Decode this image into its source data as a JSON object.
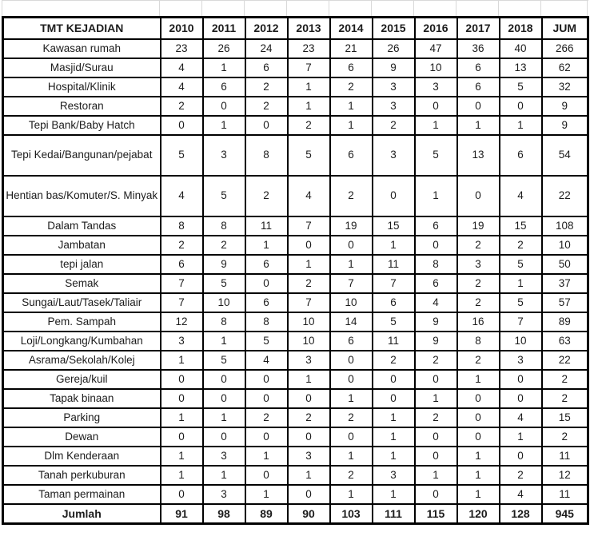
{
  "chart_data": {
    "type": "table",
    "title": "TMT KEJADIAN",
    "columns": [
      "TMT KEJADIAN",
      "2010",
      "2011",
      "2012",
      "2013",
      "2014",
      "2015",
      "2016",
      "2017",
      "2018",
      "JUM"
    ],
    "rows": [
      {
        "label": "Kawasan rumah",
        "values": [
          23,
          26,
          24,
          23,
          21,
          26,
          47,
          36,
          40
        ],
        "total": 266
      },
      {
        "label": "Masjid/Surau",
        "values": [
          4,
          1,
          6,
          7,
          6,
          9,
          10,
          6,
          13
        ],
        "total": 62
      },
      {
        "label": "Hospital/Klinik",
        "values": [
          4,
          6,
          2,
          1,
          2,
          3,
          3,
          6,
          5
        ],
        "total": 32
      },
      {
        "label": "Restoran",
        "values": [
          2,
          0,
          2,
          1,
          1,
          3,
          0,
          0,
          0
        ],
        "total": 9
      },
      {
        "label": "Tepi Bank/Baby Hatch",
        "values": [
          0,
          1,
          0,
          2,
          1,
          2,
          1,
          1,
          1
        ],
        "total": 9
      },
      {
        "label": "Tepi Kedai/Bangunan/pejabat",
        "values": [
          5,
          3,
          8,
          5,
          6,
          3,
          5,
          13,
          6
        ],
        "total": 54
      },
      {
        "label": "Hentian bas/Komuter/S. Minyak",
        "values": [
          4,
          5,
          2,
          4,
          2,
          0,
          1,
          0,
          4
        ],
        "total": 22
      },
      {
        "label": "Dalam Tandas",
        "values": [
          8,
          8,
          11,
          7,
          19,
          15,
          6,
          19,
          15
        ],
        "total": 108
      },
      {
        "label": "Jambatan",
        "values": [
          2,
          2,
          1,
          0,
          0,
          1,
          0,
          2,
          2
        ],
        "total": 10
      },
      {
        "label": "tepi jalan",
        "values": [
          6,
          9,
          6,
          1,
          1,
          11,
          8,
          3,
          5
        ],
        "total": 50
      },
      {
        "label": "Semak",
        "values": [
          7,
          5,
          0,
          2,
          7,
          7,
          6,
          2,
          1
        ],
        "total": 37
      },
      {
        "label": "Sungai/Laut/Tasek/Taliair",
        "values": [
          7,
          10,
          6,
          7,
          10,
          6,
          4,
          2,
          5
        ],
        "total": 57
      },
      {
        "label": "Pem. Sampah",
        "values": [
          12,
          8,
          8,
          10,
          14,
          5,
          9,
          16,
          7
        ],
        "total": 89
      },
      {
        "label": "Loji/Longkang/Kumbahan",
        "values": [
          3,
          1,
          5,
          10,
          6,
          11,
          9,
          8,
          10
        ],
        "total": 63
      },
      {
        "label": "Asrama/Sekolah/Kolej",
        "values": [
          1,
          5,
          4,
          3,
          0,
          2,
          2,
          2,
          3
        ],
        "total": 22
      },
      {
        "label": "Gereja/kuil",
        "values": [
          0,
          0,
          0,
          1,
          0,
          0,
          0,
          1,
          0
        ],
        "total": 2
      },
      {
        "label": "Tapak binaan",
        "values": [
          0,
          0,
          0,
          0,
          1,
          0,
          1,
          0,
          0
        ],
        "total": 2
      },
      {
        "label": "Parking",
        "values": [
          1,
          1,
          2,
          2,
          2,
          1,
          2,
          0,
          4
        ],
        "total": 15
      },
      {
        "label": "Dewan",
        "values": [
          0,
          0,
          0,
          0,
          0,
          1,
          0,
          0,
          1
        ],
        "total": 2
      },
      {
        "label": "Dlm Kenderaan",
        "values": [
          1,
          3,
          1,
          3,
          1,
          1,
          0,
          1,
          0
        ],
        "total": 11
      },
      {
        "label": "Tanah perkuburan",
        "values": [
          1,
          1,
          0,
          1,
          2,
          3,
          1,
          1,
          2
        ],
        "total": 12
      },
      {
        "label": "Taman permainan",
        "values": [
          0,
          3,
          1,
          0,
          1,
          1,
          0,
          1,
          4
        ],
        "total": 11
      }
    ],
    "footer": {
      "label": "Jumlah",
      "values": [
        91,
        98,
        89,
        90,
        103,
        111,
        115,
        120,
        128
      ],
      "total": 945
    },
    "layout_hints": {
      "grid": true,
      "tall_row_indices": [
        5,
        6
      ],
      "header_bold": true,
      "footer_bold": true
    }
  },
  "colors": {
    "border": "#000000",
    "text": "#1c1c1c",
    "grid_stub": "#d9d9d9",
    "background": "#ffffff"
  }
}
